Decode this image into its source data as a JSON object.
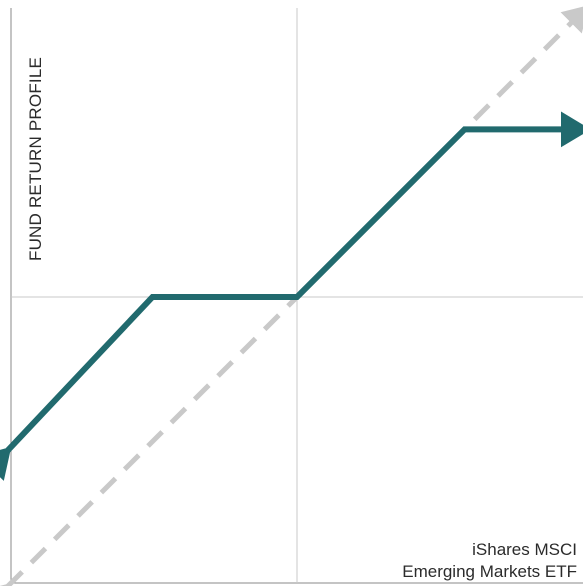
{
  "chart_data": {
    "type": "line",
    "title": "",
    "ylabel": "FUND RETURN PROFILE",
    "xlabel_lines": [
      "iShares MSCI",
      "Emerging Markets ETF"
    ],
    "xlim": [
      -1,
      1
    ],
    "ylim": [
      -1,
      1
    ],
    "grid": false,
    "center_lines": true,
    "series": [
      {
        "role": "fund",
        "style": "solid-arrow",
        "color": "#216a6e",
        "x": [
          -1.0,
          -0.5,
          0.0,
          0.58,
          1.0
        ],
        "y": [
          -0.53,
          0.0,
          0.0,
          0.58,
          0.58
        ]
      },
      {
        "role": "underlying",
        "style": "dashed-arrow",
        "color": "#c9c9c9",
        "x": [
          -1.0,
          1.0
        ],
        "y": [
          -1.0,
          1.0
        ]
      }
    ]
  }
}
